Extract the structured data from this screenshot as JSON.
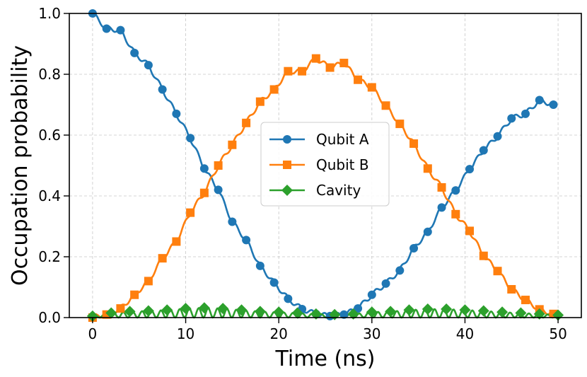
{
  "chart_data": {
    "type": "line",
    "title": "",
    "xlabel": "Time (ns)",
    "ylabel": "Occupation probability",
    "xlim": [
      -2.5,
      52.5
    ],
    "ylim": [
      0.0,
      1.0
    ],
    "xticks": [
      0,
      10,
      20,
      30,
      40,
      50
    ],
    "yticks": [
      0.0,
      0.2,
      0.4,
      0.6,
      0.8,
      1.0
    ],
    "xtick_labels": [
      "0",
      "10",
      "20",
      "30",
      "40",
      "50"
    ],
    "ytick_labels": [
      "0.0",
      "0.2",
      "0.4",
      "0.6",
      "0.8",
      "1.0"
    ],
    "grid": true,
    "legend_position": "center",
    "series": [
      {
        "name": "Qubit A",
        "color": "#1f77b4",
        "marker": "circle",
        "x": [
          0,
          1.5,
          3,
          4.5,
          6,
          7.5,
          9,
          10.5,
          12,
          13.5,
          15,
          16.5,
          18,
          19.5,
          21,
          22.5,
          24,
          25.5,
          27,
          28.5,
          30,
          31.5,
          33,
          34.5,
          36,
          37.5,
          39,
          40.5,
          42,
          43.5,
          45,
          46.5,
          48,
          49.5
        ],
        "values": [
          1.0,
          0.95,
          0.945,
          0.87,
          0.83,
          0.75,
          0.67,
          0.59,
          0.49,
          0.42,
          0.315,
          0.255,
          0.17,
          0.115,
          0.062,
          0.028,
          0.012,
          0.005,
          0.01,
          0.03,
          0.075,
          0.112,
          0.155,
          0.228,
          0.282,
          0.362,
          0.418,
          0.488,
          0.55,
          0.596,
          0.655,
          0.67,
          0.715,
          0.7
        ]
      },
      {
        "name": "Qubit B",
        "color": "#ff7f0e",
        "marker": "square",
        "x": [
          0,
          1.5,
          3,
          4.5,
          6,
          7.5,
          9,
          10.5,
          12,
          13.5,
          15,
          16.5,
          18,
          19.5,
          21,
          22.5,
          24,
          25.5,
          27,
          28.5,
          30,
          31.5,
          33,
          34.5,
          36,
          37.5,
          39,
          40.5,
          42,
          43.5,
          45,
          46.5,
          48,
          49.5
        ],
        "values": [
          0.0,
          0.01,
          0.03,
          0.075,
          0.12,
          0.195,
          0.25,
          0.345,
          0.41,
          0.5,
          0.568,
          0.64,
          0.71,
          0.75,
          0.81,
          0.81,
          0.852,
          0.822,
          0.837,
          0.782,
          0.757,
          0.697,
          0.637,
          0.572,
          0.49,
          0.428,
          0.34,
          0.285,
          0.203,
          0.153,
          0.093,
          0.058,
          0.027,
          0.012
        ]
      },
      {
        "name": "Cavity",
        "color": "#2ca02c",
        "marker": "diamond",
        "x": [
          0,
          2,
          4,
          6,
          8,
          10,
          12,
          14,
          16,
          18,
          20,
          22,
          24,
          26,
          28,
          30,
          32,
          34,
          36,
          38,
          40,
          42,
          44,
          46,
          48,
          50
        ],
        "values": [
          0.005,
          0.015,
          0.02,
          0.022,
          0.025,
          0.03,
          0.032,
          0.03,
          0.025,
          0.02,
          0.018,
          0.015,
          0.012,
          0.01,
          0.012,
          0.018,
          0.02,
          0.025,
          0.028,
          0.028,
          0.025,
          0.022,
          0.018,
          0.015,
          0.012,
          0.008
        ]
      }
    ]
  }
}
